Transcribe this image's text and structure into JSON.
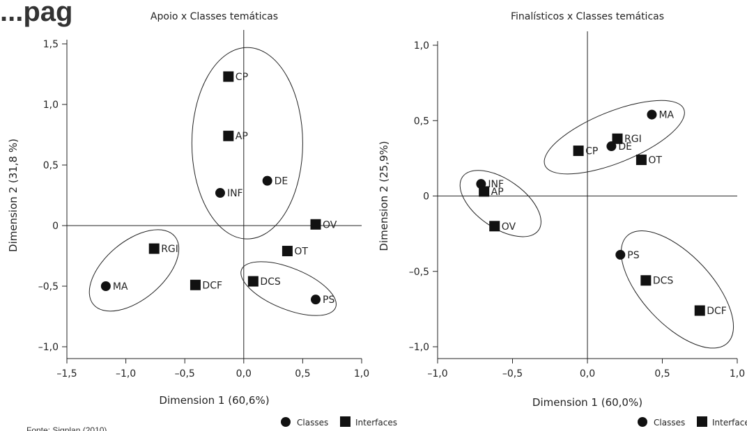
{
  "page_title": "...pag",
  "source_note": "Fonte: Sigplan (2010).",
  "legend": {
    "classes_label": "Classes",
    "interfaces_label": "Interfaces"
  },
  "chart_data": [
    {
      "type": "scatter",
      "title": "Apoio x Classes temáticas",
      "xlabel": "Dimension 1 (60,6%)",
      "ylabel": "Dimension 2 (31,8 %)",
      "xlim": [
        -1.5,
        1.0
      ],
      "ylim": [
        -1.0,
        1.5
      ],
      "xticks": [
        -1.5,
        -1.0,
        -0.5,
        0.0,
        0.5,
        1.0
      ],
      "yticks": [
        -1.0,
        -0.5,
        0,
        0.5,
        1.0,
        1.5
      ],
      "xtick_labels": [
        "–1,5",
        "–1,0",
        "–0,5",
        "0,0",
        "0,5",
        "1,0"
      ],
      "ytick_labels": [
        "–1,0",
        "–0,5",
        "0",
        "0,5",
        "1,0",
        "1,5"
      ],
      "legend": "bottom-right",
      "series": [
        {
          "name": "Classes",
          "marker": "circle",
          "points": [
            {
              "label": "DE",
              "x": 0.2,
              "y": 0.37
            },
            {
              "label": "INF",
              "x": -0.2,
              "y": 0.27
            },
            {
              "label": "MA",
              "x": -1.17,
              "y": -0.5
            },
            {
              "label": "PS",
              "x": 0.61,
              "y": -0.61
            }
          ]
        },
        {
          "name": "Interfaces",
          "marker": "square",
          "points": [
            {
              "label": "CP",
              "x": -0.13,
              "y": 1.23
            },
            {
              "label": "AP",
              "x": -0.13,
              "y": 0.74
            },
            {
              "label": "OV",
              "x": 0.61,
              "y": 0.01
            },
            {
              "label": "OT",
              "x": 0.37,
              "y": -0.21
            },
            {
              "label": "RGI",
              "x": -0.76,
              "y": -0.19
            },
            {
              "label": "DCF",
              "x": -0.41,
              "y": -0.49
            },
            {
              "label": "DCS",
              "x": 0.08,
              "y": -0.46
            }
          ]
        }
      ],
      "ellipses": [
        {
          "cx": 0.03,
          "cy": 0.68,
          "rx": 0.47,
          "ry": 0.79,
          "angle": 0
        },
        {
          "cx": -0.93,
          "cy": -0.37,
          "rx": 0.45,
          "ry": 0.24,
          "angle": -40
        },
        {
          "cx": 0.38,
          "cy": -0.52,
          "rx": 0.43,
          "ry": 0.17,
          "angle": 22
        }
      ]
    },
    {
      "type": "scatter",
      "title": "Finalísticos x Classes temáticas",
      "xlabel": "Dimension 1 (60,0%)",
      "ylabel": "Dimension 2 (25,9%)",
      "xlim": [
        -1.0,
        1.0
      ],
      "ylim": [
        -1.0,
        1.0
      ],
      "xticks": [
        -1.0,
        -0.5,
        0.0,
        0.5,
        1.0
      ],
      "yticks": [
        -1.0,
        -0.5,
        0,
        0.5,
        1.0
      ],
      "xtick_labels": [
        "–1,0",
        "–0,5",
        "0,0",
        "0,5",
        "1,0"
      ],
      "ytick_labels": [
        "–1,0",
        "–0,5",
        "0",
        "0,5",
        "1,0"
      ],
      "legend": "bottom-right",
      "series": [
        {
          "name": "Classes",
          "marker": "circle",
          "points": [
            {
              "label": "MA",
              "x": 0.43,
              "y": 0.54
            },
            {
              "label": "DE",
              "x": 0.16,
              "y": 0.33
            },
            {
              "label": "INF",
              "x": -0.71,
              "y": 0.08
            },
            {
              "label": "PS",
              "x": 0.22,
              "y": -0.39
            }
          ]
        },
        {
          "name": "Interfaces",
          "marker": "square",
          "points": [
            {
              "label": "RGI",
              "x": 0.2,
              "y": 0.38
            },
            {
              "label": "CP",
              "x": -0.06,
              "y": 0.3
            },
            {
              "label": "OT",
              "x": 0.36,
              "y": 0.24
            },
            {
              "label": "AP",
              "x": -0.69,
              "y": 0.03
            },
            {
              "label": "OV",
              "x": -0.62,
              "y": -0.2
            },
            {
              "label": "DCS",
              "x": 0.39,
              "y": -0.56
            },
            {
              "label": "DCF",
              "x": 0.75,
              "y": -0.76
            }
          ]
        }
      ],
      "ellipses": [
        {
          "cx": 0.18,
          "cy": 0.39,
          "rx": 0.5,
          "ry": 0.17,
          "angle": -22
        },
        {
          "cx": -0.58,
          "cy": -0.05,
          "rx": 0.31,
          "ry": 0.16,
          "angle": 35
        },
        {
          "cx": 0.6,
          "cy": -0.62,
          "rx": 0.49,
          "ry": 0.23,
          "angle": 47
        }
      ]
    }
  ]
}
